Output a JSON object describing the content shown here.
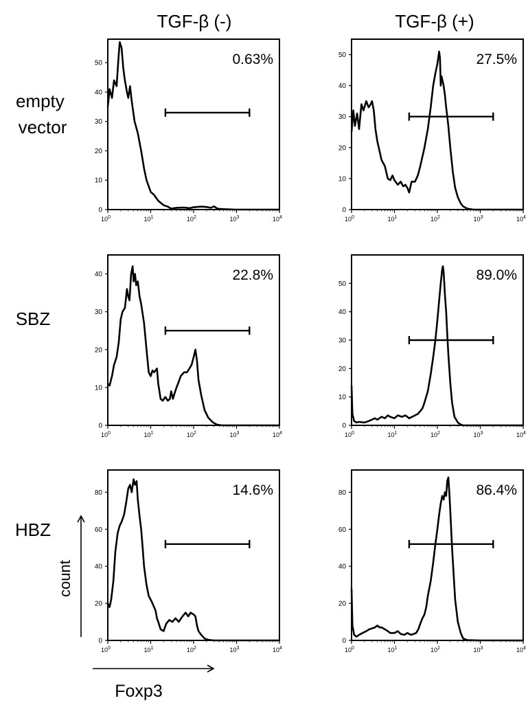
{
  "column_headers": [
    "TGF-β (-)",
    "TGF-β (+)"
  ],
  "row_labels": [
    [
      "empty",
      "vector"
    ],
    [
      "SBZ"
    ],
    [
      "HBZ"
    ]
  ],
  "y_axis_title": "count",
  "x_axis_title": "Foxp3",
  "x_tick_labels": [
    {
      "base": "10",
      "exp": "0"
    },
    {
      "base": "10",
      "exp": "1"
    },
    {
      "base": "10",
      "exp": "2"
    },
    {
      "base": "10",
      "exp": "3"
    },
    {
      "base": "10",
      "exp": "4"
    }
  ],
  "chart_data": [
    {
      "type": "area",
      "xscale": "log",
      "xlim": [
        1,
        10000
      ],
      "ylim": [
        0,
        58
      ],
      "yticks": [
        0,
        10,
        20,
        30,
        40,
        50
      ],
      "gate": [
        22,
        2000
      ],
      "gate_y": 33,
      "percent": "0.63%",
      "x": [
        1,
        1.1,
        1.25,
        1.4,
        1.6,
        1.8,
        1.9,
        2.1,
        2.3,
        2.5,
        2.8,
        3.0,
        3.3,
        3.6,
        4.2,
        5.0,
        6.0,
        7.0,
        8.0,
        10,
        12,
        15,
        20,
        25,
        30,
        40,
        60,
        80,
        100,
        150,
        200,
        250,
        300,
        350,
        400,
        600,
        1000,
        3000,
        10000
      ],
      "y": [
        35,
        41,
        38,
        44,
        42,
        53,
        57,
        55,
        48,
        44,
        40,
        38,
        42,
        37,
        30,
        26,
        20,
        14,
        10,
        6,
        5,
        3,
        1.5,
        1,
        0.3,
        0.6,
        0.7,
        0.5,
        0.8,
        1,
        0.9,
        0.6,
        1.1,
        0.4,
        0.2,
        0.1,
        0,
        0,
        0
      ]
    },
    {
      "type": "area",
      "xscale": "log",
      "xlim": [
        1,
        10000
      ],
      "ylim": [
        0,
        55
      ],
      "yticks": [
        0,
        10,
        20,
        30,
        40,
        50
      ],
      "gate": [
        22,
        2000
      ],
      "gate_y": 30,
      "percent": "27.5%",
      "x": [
        1,
        1.1,
        1.2,
        1.35,
        1.5,
        1.7,
        1.9,
        2.2,
        2.5,
        2.8,
        3.0,
        3.3,
        3.6,
        4.0,
        5,
        6,
        7,
        8,
        9,
        10,
        12,
        14,
        16,
        18,
        20,
        22,
        25,
        30,
        35,
        40,
        50,
        60,
        70,
        80,
        90,
        100,
        110,
        115,
        120,
        125,
        130,
        140,
        150,
        160,
        170,
        180,
        200,
        230,
        260,
        300,
        350,
        400,
        500,
        700,
        1000,
        10000
      ],
      "y": [
        25,
        32,
        27,
        31,
        26,
        34,
        32,
        35,
        33,
        34,
        35,
        32,
        26,
        22,
        16,
        14,
        10,
        9.5,
        11,
        9.5,
        8,
        9,
        7.5,
        8,
        7,
        5.5,
        9,
        9,
        11,
        14,
        20,
        26,
        33,
        40,
        44,
        47,
        51,
        49,
        40,
        43,
        42,
        40,
        37,
        33,
        30,
        27,
        20,
        12,
        7,
        4,
        2,
        1,
        0.3,
        0,
        0,
        0
      ]
    },
    {
      "type": "area",
      "xscale": "log",
      "xlim": [
        1,
        10000
      ],
      "ylim": [
        0,
        45
      ],
      "yticks": [
        0,
        10,
        20,
        30,
        40
      ],
      "gate": [
        22,
        2000
      ],
      "gate_y": 25,
      "percent": "22.8%",
      "x": [
        1,
        1.1,
        1.25,
        1.4,
        1.6,
        1.8,
        2.0,
        2.2,
        2.5,
        2.8,
        3.0,
        3.2,
        3.5,
        3.8,
        4.0,
        4.3,
        4.6,
        5.0,
        5.5,
        6.0,
        7,
        8,
        9,
        10,
        11,
        12,
        13,
        14,
        15,
        17,
        19,
        22,
        25,
        28,
        30,
        33,
        36,
        40,
        45,
        50,
        60,
        70,
        80,
        90,
        100,
        110,
        120,
        130,
        150,
        180,
        220,
        280,
        350,
        450,
        600,
        1000,
        10000
      ],
      "y": [
        11,
        10.5,
        13,
        16,
        18,
        22,
        28,
        30,
        31,
        36,
        34,
        33,
        40,
        42,
        38,
        40,
        37,
        38,
        34,
        32,
        27,
        20,
        14,
        13,
        14.5,
        14,
        14.5,
        15,
        11,
        7,
        6.5,
        7.5,
        6.5,
        7,
        9,
        7,
        8.5,
        10,
        11.5,
        13,
        14,
        14,
        15,
        16,
        18,
        20,
        17,
        12,
        8,
        4,
        2,
        0.8,
        0.2,
        0,
        0,
        0,
        0
      ]
    },
    {
      "type": "area",
      "xscale": "log",
      "xlim": [
        1,
        10000
      ],
      "ylim": [
        0,
        60
      ],
      "yticks": [
        0,
        10,
        20,
        30,
        40,
        50
      ],
      "gate": [
        22,
        2000
      ],
      "gate_y": 30,
      "percent": "89.0%",
      "x": [
        1,
        1.05,
        1.15,
        1.3,
        1.5,
        2,
        2.5,
        3,
        3.5,
        4,
        5,
        6,
        7,
        8,
        10,
        12,
        15,
        18,
        22,
        26,
        30,
        35,
        40,
        45,
        50,
        60,
        70,
        80,
        90,
        100,
        110,
        120,
        130,
        135,
        140,
        145,
        150,
        160,
        170,
        180,
        200,
        220,
        250,
        300,
        350,
        400,
        500,
        1000,
        10000
      ],
      "y": [
        14,
        4,
        1.5,
        1,
        1.2,
        1,
        1.5,
        2,
        2.5,
        2,
        3,
        2.5,
        3.5,
        3,
        2.5,
        3.5,
        3,
        3.5,
        2.5,
        3,
        3.5,
        4,
        5,
        6,
        8,
        12,
        18,
        24,
        30,
        37,
        44,
        50,
        55,
        56,
        54,
        50,
        46,
        40,
        32,
        25,
        15,
        8,
        3,
        1,
        0.3,
        0,
        0,
        0,
        0
      ]
    },
    {
      "type": "area",
      "xscale": "log",
      "xlim": [
        1,
        10000
      ],
      "ylim": [
        0,
        92
      ],
      "yticks": [
        0,
        20,
        40,
        60,
        80
      ],
      "gate": [
        22,
        2000
      ],
      "gate_y": 52,
      "percent": "14.6%",
      "x": [
        1,
        1.1,
        1.2,
        1.35,
        1.5,
        1.7,
        1.9,
        2.1,
        2.4,
        2.7,
        3.0,
        3.3,
        3.6,
        4.0,
        4.3,
        4.7,
        5.0,
        5.5,
        6.0,
        6.5,
        7,
        8,
        9,
        10,
        11,
        12,
        13,
        14,
        15,
        17,
        20,
        23,
        27,
        32,
        38,
        45,
        55,
        65,
        75,
        85,
        100,
        110,
        120,
        130,
        150,
        180,
        220,
        300,
        500,
        1000,
        10000
      ],
      "y": [
        20,
        18,
        22,
        32,
        48,
        58,
        62,
        64,
        68,
        75,
        82,
        84,
        80,
        87,
        84,
        86,
        76,
        67,
        60,
        50,
        40,
        30,
        24,
        22,
        20,
        18,
        16,
        12,
        10,
        6,
        5,
        9,
        11,
        10,
        12,
        10,
        13,
        15,
        13,
        15,
        14,
        13,
        8,
        5,
        3,
        1,
        0.3,
        0,
        0,
        0,
        0
      ]
    },
    {
      "type": "area",
      "xscale": "log",
      "xlim": [
        1,
        10000
      ],
      "ylim": [
        0,
        92
      ],
      "yticks": [
        0,
        20,
        40,
        60,
        80
      ],
      "gate": [
        22,
        2000
      ],
      "gate_y": 52,
      "percent": "86.4%",
      "x": [
        1,
        1.05,
        1.15,
        1.3,
        1.5,
        1.8,
        2.2,
        2.6,
        3.0,
        3.5,
        4,
        4.5,
        5,
        6,
        7,
        8,
        10,
        12,
        14,
        17,
        20,
        24,
        28,
        32,
        36,
        40,
        45,
        50,
        55,
        60,
        70,
        80,
        90,
        100,
        110,
        120,
        130,
        140,
        150,
        160,
        170,
        180,
        190,
        200,
        220,
        240,
        260,
        300,
        350,
        400,
        500,
        1000,
        10000
      ],
      "y": [
        28,
        8,
        3,
        2,
        3,
        4,
        5,
        6,
        6.5,
        7,
        8,
        7,
        7,
        6,
        5,
        4,
        4,
        5,
        3.5,
        3,
        4,
        3,
        3.5,
        4,
        6,
        9,
        12,
        14,
        18,
        24,
        32,
        42,
        52,
        60,
        68,
        74,
        78,
        76,
        80,
        78,
        86,
        88,
        80,
        70,
        50,
        35,
        22,
        10,
        4,
        1,
        0.2,
        0,
        0
      ]
    }
  ]
}
